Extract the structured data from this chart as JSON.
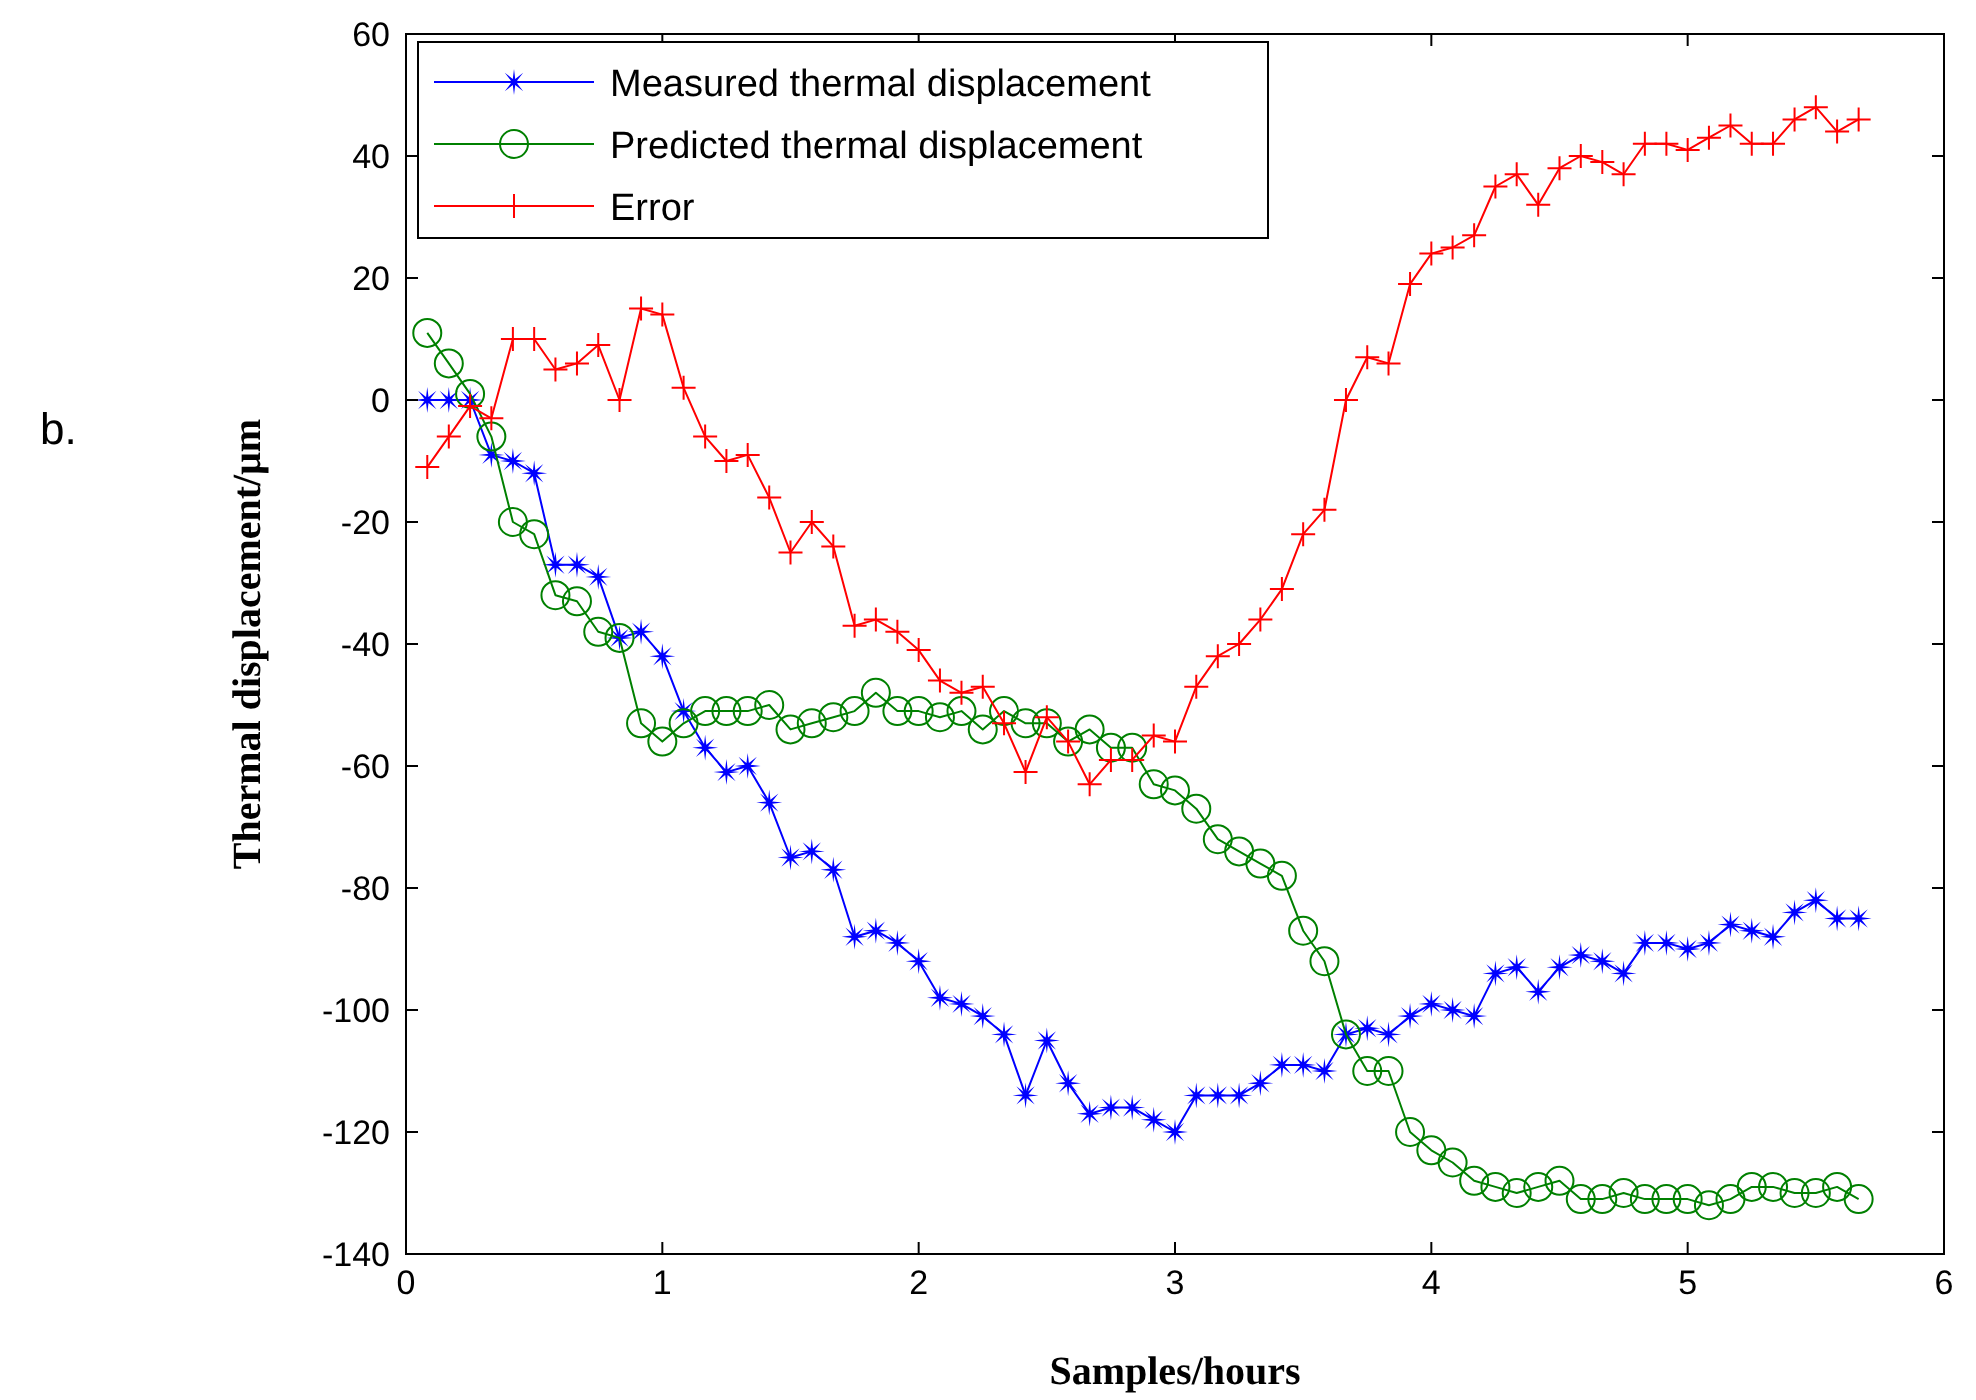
{
  "chart_data": {
    "type": "line",
    "xlabel": "Samples/hours",
    "ylabel": "Thermal displacement/μm",
    "annotations": [
      "b."
    ],
    "x": [
      0.083,
      0.167,
      0.25,
      0.333,
      0.417,
      0.5,
      0.583,
      0.667,
      0.75,
      0.833,
      0.917,
      1.0,
      1.083,
      1.167,
      1.25,
      1.333,
      1.417,
      1.5,
      1.583,
      1.667,
      1.75,
      1.833,
      1.917,
      2.0,
      2.083,
      2.167,
      2.25,
      2.333,
      2.417,
      2.5,
      2.583,
      2.667,
      2.75,
      2.833,
      2.917,
      3.0,
      3.083,
      3.167,
      3.25,
      3.333,
      3.417,
      3.5,
      3.583,
      3.667,
      3.75,
      3.833,
      3.917,
      4.0,
      4.083,
      4.167,
      4.25,
      4.333,
      4.417,
      4.5,
      4.583,
      4.667,
      4.75,
      4.833,
      4.917,
      5.0,
      5.083,
      5.167,
      5.25,
      5.333,
      5.417,
      5.5,
      5.583,
      5.667
    ],
    "series": [
      {
        "name": "Measured thermal displacement",
        "color": "#0000ff",
        "marker": "star",
        "values": [
          0,
          0,
          0,
          -9,
          -10,
          -12,
          -27,
          -27,
          -29,
          -39,
          -38,
          -42,
          -51,
          -57,
          -61,
          -60,
          -66,
          -75,
          -74,
          -77,
          -88,
          -87,
          -89,
          -92,
          -98,
          -99,
          -101,
          -104,
          -114,
          -105,
          -112,
          -117,
          -116,
          -116,
          -118,
          -120,
          -114,
          -114,
          -114,
          -112,
          -109,
          -109,
          -110,
          -104,
          -103,
          -104,
          -101,
          -99,
          -100,
          -101,
          -94,
          -93,
          -97,
          -93,
          -91,
          -92,
          -94,
          -89,
          -89,
          -90,
          -89,
          -86,
          -87,
          -88,
          -84,
          -82,
          -85,
          -85
        ]
      },
      {
        "name": "Predicted thermal displacement",
        "color": "#008000",
        "marker": "circle",
        "values": [
          11,
          6,
          1,
          -6,
          -20,
          -22,
          -32,
          -33,
          -38,
          -39,
          -53,
          -56,
          -53,
          -51,
          -51,
          -51,
          -50,
          -54,
          -53,
          -52,
          -51,
          -48,
          -51,
          -51,
          -52,
          -51,
          -54,
          -51,
          -53,
          -53,
          -56,
          -54,
          -57,
          -57,
          -63,
          -64,
          -67,
          -72,
          -74,
          -76,
          -78,
          -87,
          -92,
          -104,
          -110,
          -110,
          -120,
          -123,
          -125,
          -128,
          -129,
          -130,
          -129,
          -128,
          -131,
          -131,
          -130,
          -131,
          -131,
          -131,
          -132,
          -131,
          -129,
          -129,
          -130,
          -130,
          -129,
          -131
        ]
      },
      {
        "name": "Error",
        "color": "#ff0000",
        "marker": "cross",
        "values": [
          -11,
          -6,
          -1,
          -3,
          10,
          10,
          5,
          6,
          9,
          0,
          15,
          14,
          2,
          -6,
          -10,
          -9,
          -16,
          -25,
          -20,
          -24,
          -37,
          -36,
          -38,
          -41,
          -46,
          -48,
          -47,
          -53,
          -61,
          -52,
          -56,
          -63,
          -59,
          -59,
          -55,
          -56,
          -47,
          -42,
          -40,
          -36,
          -31,
          -22,
          -18,
          0,
          7,
          6,
          19,
          24,
          25,
          27,
          35,
          37,
          32,
          38,
          40,
          39,
          37,
          42,
          42,
          41,
          43,
          45,
          42,
          42,
          46,
          48,
          44,
          46
        ]
      }
    ],
    "xlim": [
      0,
      6
    ],
    "xticks": [
      0,
      1,
      2,
      3,
      4,
      5,
      6
    ],
    "ylim": [
      -140,
      60
    ],
    "yticks": [
      -140,
      -120,
      -100,
      -80,
      -60,
      -40,
      -20,
      0,
      20,
      40,
      60
    ],
    "grid": false,
    "legend": "top left",
    "line_style": "solid"
  }
}
